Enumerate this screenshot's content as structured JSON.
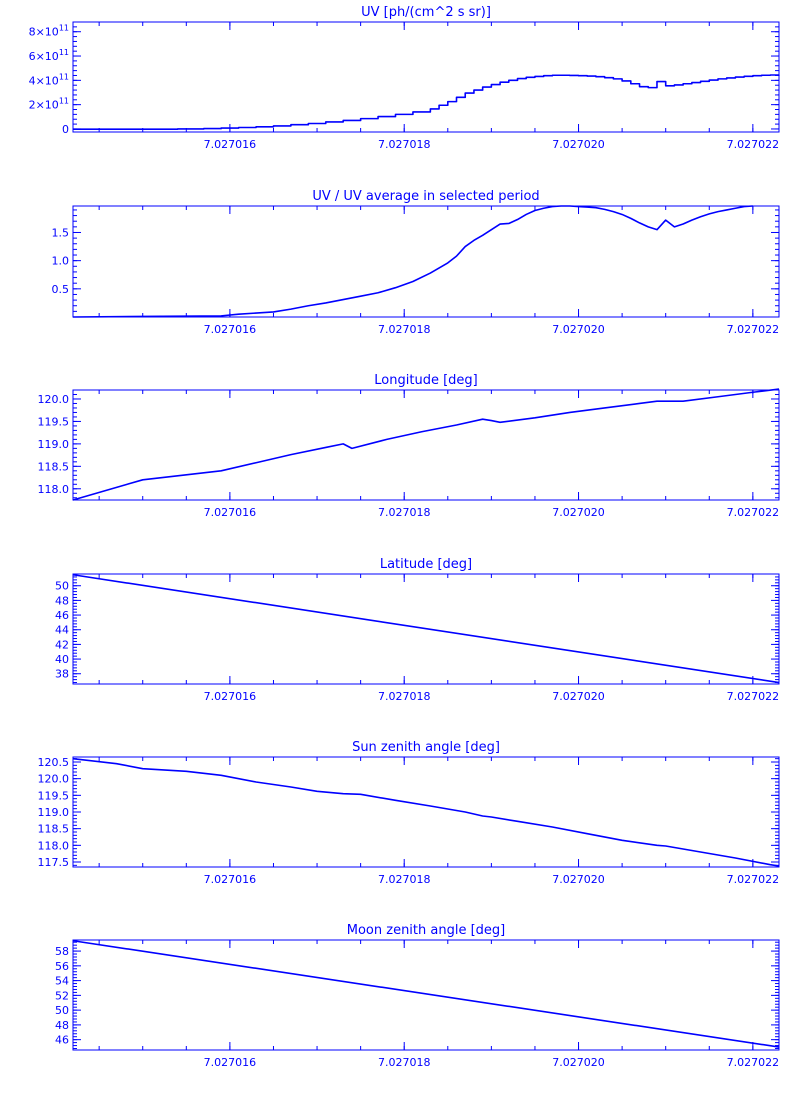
{
  "colors": {
    "line": "#0000ff",
    "background": "#ffffff"
  },
  "chart_data": [
    {
      "type": "line",
      "title": "UV [ph/(cm^2 s sr)]",
      "step": true,
      "xlim": [
        7.0270142,
        7.0270223
      ],
      "ylim": [
        -25000000000.0,
        880000000000.0
      ],
      "x_ticks": [
        7.027016,
        7.027018,
        7.02702,
        7.027022
      ],
      "x_tick_labels": [
        "7.027016",
        "7.027018",
        "7.027020",
        "7.027022"
      ],
      "y_ticks": [
        0,
        200000000000.0,
        400000000000.0,
        600000000000.0,
        800000000000.0
      ],
      "y_tick_labels": [
        {
          "mantissa": "0",
          "exp": ""
        },
        {
          "mantissa": "2×10",
          "exp": "11"
        },
        {
          "mantissa": "4×10",
          "exp": "11"
        },
        {
          "mantissa": "6×10",
          "exp": "11"
        },
        {
          "mantissa": "8×10",
          "exp": "11"
        }
      ],
      "series": [
        {
          "x": [
            7.0270142,
            7.0270154,
            7.0270157,
            7.0270159,
            7.0270161,
            7.0270163,
            7.0270165,
            7.0270167,
            7.0270169,
            7.0270171,
            7.0270173,
            7.0270175,
            7.0270177,
            7.0270179,
            7.0270181,
            7.0270183,
            7.0270184,
            7.0270185,
            7.0270186,
            7.0270187,
            7.0270188,
            7.0270189,
            7.027019,
            7.0270191,
            7.0270192,
            7.0270193,
            7.0270194,
            7.0270195,
            7.0270196,
            7.0270197,
            7.0270198,
            7.0270199,
            7.02702,
            7.0270201,
            7.0270202,
            7.0270203,
            7.0270204,
            7.0270205,
            7.0270206,
            7.0270207,
            7.0270208,
            7.0270209,
            7.027021,
            7.0270211,
            7.0270212,
            7.0270213,
            7.0270214,
            7.0270215,
            7.0270216,
            7.0270217,
            7.0270218,
            7.0270219,
            7.027022,
            7.0270221,
            7.0270222,
            7.0270223
          ],
          "y": [
            -2000000000.0,
            0,
            3000000000.0,
            7000000000.0,
            12000000000.0,
            18000000000.0,
            25000000000.0,
            35000000000.0,
            45000000000.0,
            58000000000.0,
            70000000000.0,
            85000000000.0,
            102000000000.0,
            120000000000.0,
            140000000000.0,
            165000000000.0,
            195000000000.0,
            225000000000.0,
            260000000000.0,
            295000000000.0,
            320000000000.0,
            345000000000.0,
            365000000000.0,
            385000000000.0,
            400000000000.0,
            415000000000.0,
            425000000000.0,
            432000000000.0,
            438000000000.0,
            442000000000.0,
            442000000000.0,
            440000000000.0,
            438000000000.0,
            435000000000.0,
            430000000000.0,
            422000000000.0,
            412000000000.0,
            395000000000.0,
            372000000000.0,
            348000000000.0,
            340000000000.0,
            390000000000.0,
            355000000000.0,
            362000000000.0,
            372000000000.0,
            382000000000.0,
            392000000000.0,
            402000000000.0,
            412000000000.0,
            420000000000.0,
            427000000000.0,
            433000000000.0,
            438000000000.0,
            442000000000.0,
            444000000000.0,
            445000000000.0
          ]
        }
      ]
    },
    {
      "type": "line",
      "title": "UV / UV average in selected period",
      "xlim": [
        7.0270142,
        7.0270223
      ],
      "ylim": [
        0.0,
        1.97
      ],
      "x_ticks": [
        7.027016,
        7.027018,
        7.02702,
        7.027022
      ],
      "x_tick_labels": [
        "7.027016",
        "7.027018",
        "7.027020",
        "7.027022"
      ],
      "y_ticks": [
        0.5,
        1.0,
        1.5
      ],
      "y_tick_labels": [
        "0.5",
        "1.0",
        "1.5"
      ],
      "series": [
        {
          "x": [
            7.0270142,
            7.027015,
            7.0270159,
            7.0270161,
            7.0270165,
            7.0270167,
            7.0270169,
            7.0270171,
            7.0270173,
            7.0270175,
            7.0270177,
            7.0270179,
            7.0270181,
            7.0270183,
            7.0270185,
            7.0270186,
            7.0270187,
            7.0270188,
            7.0270189,
            7.027019,
            7.0270191,
            7.0270192,
            7.0270193,
            7.0270194,
            7.0270195,
            7.0270196,
            7.0270197,
            7.0270198,
            7.0270199,
            7.02702,
            7.0270201,
            7.0270202,
            7.0270203,
            7.0270204,
            7.0270205,
            7.0270206,
            7.0270207,
            7.0270208,
            7.0270209,
            7.027021,
            7.0270211,
            7.0270212,
            7.0270213,
            7.0270214,
            7.0270215,
            7.0270216,
            7.0270217,
            7.0270218,
            7.0270219,
            7.027022
          ],
          "y": [
            0.0,
            0.01,
            0.02,
            0.05,
            0.09,
            0.14,
            0.2,
            0.25,
            0.31,
            0.37,
            0.43,
            0.52,
            0.63,
            0.78,
            0.96,
            1.08,
            1.25,
            1.36,
            1.45,
            1.55,
            1.65,
            1.66,
            1.73,
            1.82,
            1.89,
            1.93,
            1.96,
            1.97,
            1.97,
            1.96,
            1.95,
            1.94,
            1.91,
            1.87,
            1.82,
            1.75,
            1.67,
            1.6,
            1.55,
            1.72,
            1.6,
            1.65,
            1.72,
            1.78,
            1.83,
            1.87,
            1.9,
            1.93,
            1.96,
            1.97
          ]
        }
      ]
    },
    {
      "type": "line",
      "title": "Longitude [deg]",
      "xlim": [
        7.0270142,
        7.0270223
      ],
      "ylim": [
        117.75,
        120.2
      ],
      "x_ticks": [
        7.027016,
        7.027018,
        7.02702,
        7.027022
      ],
      "x_tick_labels": [
        "7.027016",
        "7.027018",
        "7.027020",
        "7.027022"
      ],
      "y_ticks": [
        118.0,
        118.5,
        119.0,
        119.5,
        120.0
      ],
      "y_tick_labels": [
        "118.0",
        "118.5",
        "119.0",
        "119.5",
        "120.0"
      ],
      "series": [
        {
          "x": [
            7.0270142,
            7.027015,
            7.0270159,
            7.0270163,
            7.0270167,
            7.0270171,
            7.0270173,
            7.0270174,
            7.0270178,
            7.0270182,
            7.0270186,
            7.0270189,
            7.027019,
            7.0270191,
            7.0270195,
            7.0270199,
            7.0270203,
            7.0270207,
            7.0270209,
            7.0270212,
            7.0270216,
            7.027022,
            7.0270223
          ],
          "y": [
            117.75,
            118.2,
            118.4,
            118.58,
            118.76,
            118.92,
            119.0,
            118.9,
            119.1,
            119.27,
            119.42,
            119.55,
            119.52,
            119.48,
            119.58,
            119.7,
            119.8,
            119.9,
            119.95,
            119.95,
            120.05,
            120.15,
            120.22
          ]
        }
      ]
    },
    {
      "type": "line",
      "title": "Latitude [deg]",
      "xlim": [
        7.0270142,
        7.0270223
      ],
      "ylim": [
        36.6,
        51.6
      ],
      "x_ticks": [
        7.027016,
        7.027018,
        7.02702,
        7.027022
      ],
      "x_tick_labels": [
        "7.027016",
        "7.027018",
        "7.027020",
        "7.027022"
      ],
      "y_ticks": [
        38,
        40,
        42,
        44,
        46,
        48,
        50
      ],
      "y_tick_labels": [
        "38",
        "40",
        "42",
        "44",
        "46",
        "48",
        "50"
      ],
      "series": [
        {
          "x": [
            7.0270142,
            7.0270223
          ],
          "y": [
            51.5,
            36.8
          ]
        }
      ]
    },
    {
      "type": "line",
      "title": "Sun zenith angle [deg]",
      "xlim": [
        7.0270142,
        7.0270223
      ],
      "ylim": [
        117.35,
        120.65
      ],
      "x_ticks": [
        7.027016,
        7.027018,
        7.02702,
        7.027022
      ],
      "x_tick_labels": [
        "7.027016",
        "7.027018",
        "7.027020",
        "7.027022"
      ],
      "y_ticks": [
        117.5,
        118.0,
        118.5,
        119.0,
        119.5,
        120.0,
        120.5
      ],
      "y_tick_labels": [
        "117.5",
        "118.0",
        "118.5",
        "119.0",
        "119.5",
        "120.0",
        "120.5"
      ],
      "series": [
        {
          "x": [
            7.0270142,
            7.0270147,
            7.027015,
            7.0270155,
            7.0270159,
            7.0270163,
            7.0270167,
            7.027017,
            7.0270173,
            7.0270175,
            7.0270179,
            7.0270183,
            7.0270187,
            7.0270189,
            7.027019,
            7.0270193,
            7.0270197,
            7.0270201,
            7.0270205,
            7.0270209,
            7.027021,
            7.0270214,
            7.0270218,
            7.0270222,
            7.0270223
          ],
          "y": [
            120.6,
            120.45,
            120.3,
            120.22,
            120.1,
            119.9,
            119.75,
            119.62,
            119.55,
            119.53,
            119.35,
            119.18,
            119.0,
            118.88,
            118.85,
            118.72,
            118.55,
            118.35,
            118.15,
            118.0,
            117.98,
            117.8,
            117.62,
            117.42,
            117.38
          ]
        }
      ]
    },
    {
      "type": "line",
      "title": "Moon zenith angle [deg]",
      "xlim": [
        7.0270142,
        7.0270223
      ],
      "ylim": [
        44.6,
        59.5
      ],
      "x_ticks": [
        7.027016,
        7.027018,
        7.02702,
        7.027022
      ],
      "x_tick_labels": [
        "7.027016",
        "7.027018",
        "7.027020",
        "7.027022"
      ],
      "y_ticks": [
        46,
        48,
        50,
        52,
        54,
        56,
        58
      ],
      "y_tick_labels": [
        "46",
        "48",
        "50",
        "52",
        "54",
        "56",
        "58"
      ],
      "series": [
        {
          "x": [
            7.0270142,
            7.0270223
          ],
          "y": [
            59.4,
            45.0
          ]
        }
      ]
    }
  ]
}
